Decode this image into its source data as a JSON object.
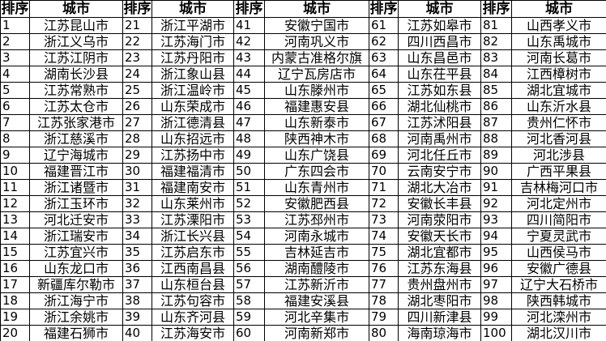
{
  "table": {
    "pairs": 5,
    "rows_per_pair": 20,
    "header": {
      "rank_label": "排序",
      "city_label": "城市"
    },
    "colors": {
      "text": "#000000",
      "border": "#000000",
      "background": "#ffffff"
    },
    "entries": [
      {
        "rank": 1,
        "city": "江苏昆山市"
      },
      {
        "rank": 2,
        "city": "浙江义乌市"
      },
      {
        "rank": 3,
        "city": "江苏江阴市"
      },
      {
        "rank": 4,
        "city": "湖南长沙县"
      },
      {
        "rank": 5,
        "city": "江苏常熟市"
      },
      {
        "rank": 6,
        "city": "江苏太仓市"
      },
      {
        "rank": 7,
        "city": "江苏张家港市"
      },
      {
        "rank": 8,
        "city": "浙江慈溪市"
      },
      {
        "rank": 9,
        "city": "辽宁海城市"
      },
      {
        "rank": 10,
        "city": "福建晋江市"
      },
      {
        "rank": 11,
        "city": "浙江诸暨市"
      },
      {
        "rank": 12,
        "city": "浙江玉环市"
      },
      {
        "rank": 13,
        "city": "河北迁安市"
      },
      {
        "rank": 14,
        "city": "浙江瑞安市"
      },
      {
        "rank": 15,
        "city": "江苏宜兴市"
      },
      {
        "rank": 16,
        "city": "山东龙口市"
      },
      {
        "rank": 17,
        "city": "新疆库尔勒市"
      },
      {
        "rank": 18,
        "city": "浙江海宁市"
      },
      {
        "rank": 19,
        "city": "浙江余姚市"
      },
      {
        "rank": 20,
        "city": "福建石狮市"
      },
      {
        "rank": 21,
        "city": "浙江平湖市"
      },
      {
        "rank": 22,
        "city": "江苏海门市"
      },
      {
        "rank": 23,
        "city": "江苏丹阳市"
      },
      {
        "rank": 24,
        "city": "浙江象山县"
      },
      {
        "rank": 25,
        "city": "浙江温岭市"
      },
      {
        "rank": 26,
        "city": "山东荣成市"
      },
      {
        "rank": 27,
        "city": "浙江德清县"
      },
      {
        "rank": 28,
        "city": "山东招远市"
      },
      {
        "rank": 29,
        "city": "江苏扬中市"
      },
      {
        "rank": 30,
        "city": "福建福清市"
      },
      {
        "rank": 31,
        "city": "福建南安市"
      },
      {
        "rank": 32,
        "city": "山东莱州市"
      },
      {
        "rank": 33,
        "city": "江苏溧阳市"
      },
      {
        "rank": 34,
        "city": "浙江长兴县"
      },
      {
        "rank": 35,
        "city": "江苏启东市"
      },
      {
        "rank": 36,
        "city": "江西南昌县"
      },
      {
        "rank": 37,
        "city": "山东桓台县"
      },
      {
        "rank": 38,
        "city": "江苏句容市"
      },
      {
        "rank": 39,
        "city": "山东齐河县"
      },
      {
        "rank": 40,
        "city": "江苏海安市"
      },
      {
        "rank": 41,
        "city": "安徽宁国市"
      },
      {
        "rank": 42,
        "city": "河南巩义市"
      },
      {
        "rank": 43,
        "city": "内蒙古准格尔旗"
      },
      {
        "rank": 44,
        "city": "辽宁瓦房店市"
      },
      {
        "rank": 45,
        "city": "山东滕州市"
      },
      {
        "rank": 46,
        "city": "福建惠安县"
      },
      {
        "rank": 47,
        "city": "山东新泰市"
      },
      {
        "rank": 48,
        "city": "陕西神木市"
      },
      {
        "rank": 49,
        "city": "山东广饶县"
      },
      {
        "rank": 50,
        "city": "广东四会市"
      },
      {
        "rank": 51,
        "city": "山东青州市"
      },
      {
        "rank": 52,
        "city": "安徽肥西县"
      },
      {
        "rank": 53,
        "city": "江苏邳州市"
      },
      {
        "rank": 54,
        "city": "河南永城市"
      },
      {
        "rank": 55,
        "city": "吉林延吉市"
      },
      {
        "rank": 56,
        "city": "湖南醴陵市"
      },
      {
        "rank": 57,
        "city": "江苏新沂市"
      },
      {
        "rank": 58,
        "city": "福建安溪县"
      },
      {
        "rank": 59,
        "city": "河北辛集市"
      },
      {
        "rank": 60,
        "city": "河南新郑市"
      },
      {
        "rank": 61,
        "city": "江苏如皋市"
      },
      {
        "rank": 62,
        "city": "四川西昌市"
      },
      {
        "rank": 63,
        "city": "山东昌邑市"
      },
      {
        "rank": 64,
        "city": "山东茌平县"
      },
      {
        "rank": 65,
        "city": "江苏如东县"
      },
      {
        "rank": 66,
        "city": "湖北仙桃市"
      },
      {
        "rank": 67,
        "city": "江苏沭阳县"
      },
      {
        "rank": 68,
        "city": "河南禹州市"
      },
      {
        "rank": 69,
        "city": "河北任丘市"
      },
      {
        "rank": 70,
        "city": "云南安宁市"
      },
      {
        "rank": 71,
        "city": "湖北大冶市"
      },
      {
        "rank": 72,
        "city": "安徽长丰县"
      },
      {
        "rank": 73,
        "city": "河南荥阳市"
      },
      {
        "rank": 74,
        "city": "安徽天长市"
      },
      {
        "rank": 75,
        "city": "湖北宜都市"
      },
      {
        "rank": 76,
        "city": "江苏东海县"
      },
      {
        "rank": 77,
        "city": "贵州盘州市"
      },
      {
        "rank": 78,
        "city": "湖北枣阳市"
      },
      {
        "rank": 79,
        "city": "四川新津县"
      },
      {
        "rank": 80,
        "city": "海南琼海市"
      },
      {
        "rank": 81,
        "city": "山西孝义市"
      },
      {
        "rank": 82,
        "city": "山东禹城市"
      },
      {
        "rank": 83,
        "city": "河南长葛市"
      },
      {
        "rank": 84,
        "city": "江西樟树市"
      },
      {
        "rank": 85,
        "city": "湖北宜城市"
      },
      {
        "rank": 86,
        "city": "山东沂水县"
      },
      {
        "rank": 87,
        "city": "贵州仁怀市"
      },
      {
        "rank": 88,
        "city": "河北香河县"
      },
      {
        "rank": 89,
        "city": "河北涉县"
      },
      {
        "rank": 90,
        "city": "广西平果县"
      },
      {
        "rank": 91,
        "city": "吉林梅河口市"
      },
      {
        "rank": 92,
        "city": "河北定州市"
      },
      {
        "rank": 93,
        "city": "四川简阳市"
      },
      {
        "rank": 94,
        "city": "宁夏灵武市"
      },
      {
        "rank": 95,
        "city": "山西侯马市"
      },
      {
        "rank": 96,
        "city": "安徽广德县"
      },
      {
        "rank": 97,
        "city": "辽宁大石桥市"
      },
      {
        "rank": 98,
        "city": "陕西韩城市"
      },
      {
        "rank": 99,
        "city": "河北滦州市"
      },
      {
        "rank": 100,
        "city": "湖北汉川市"
      }
    ]
  }
}
